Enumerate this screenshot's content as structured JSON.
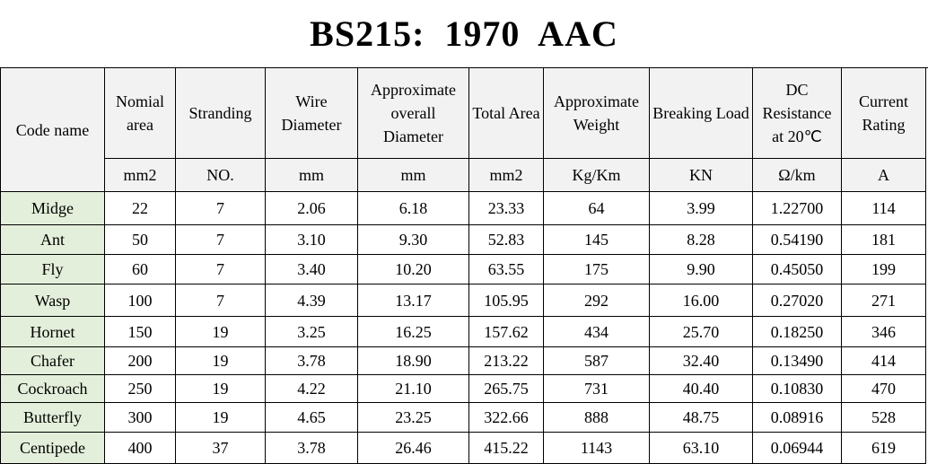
{
  "title": "BS215:  1970  AAC",
  "headers": [
    "Code name",
    "Nomial area",
    "Stranding",
    "Wire Diameter",
    "Approximate overall Diameter",
    "Total Area",
    "Approximate Weight",
    "Breaking Load",
    "DC Resistance at 20℃",
    "Current Rating"
  ],
  "units": [
    "mm2",
    "NO.",
    "mm",
    "mm",
    "mm2",
    "Kg/Km",
    "KN",
    "Ω/km",
    "A"
  ],
  "rows": [
    [
      "Midge",
      "22",
      "7",
      "2.06",
      "6.18",
      "23.33",
      "64",
      "3.99",
      "1.22700",
      "114"
    ],
    [
      "Ant",
      "50",
      "7",
      "3.10",
      "9.30",
      "52.83",
      "145",
      "8.28",
      "0.54190",
      "181"
    ],
    [
      "Fly",
      "60",
      "7",
      "3.40",
      "10.20",
      "63.55",
      "175",
      "9.90",
      "0.45050",
      "199"
    ],
    [
      "Wasp",
      "100",
      "7",
      "4.39",
      "13.17",
      "105.95",
      "292",
      "16.00",
      "0.27020",
      "271"
    ],
    [
      "Hornet",
      "150",
      "19",
      "3.25",
      "16.25",
      "157.62",
      "434",
      "25.70",
      "0.18250",
      "346"
    ],
    [
      "Chafer",
      "200",
      "19",
      "3.78",
      "18.90",
      "213.22",
      "587",
      "32.40",
      "0.13490",
      "414"
    ],
    [
      "Cockroach",
      "250",
      "19",
      "4.22",
      "21.10",
      "265.75",
      "731",
      "40.40",
      "0.10830",
      "470"
    ],
    [
      "Butterfly",
      "300",
      "19",
      "4.65",
      "23.25",
      "322.66",
      "888",
      "48.75",
      "0.08916",
      "528"
    ],
    [
      "Centipede",
      "400",
      "37",
      "3.78",
      "26.46",
      "415.22",
      "1143",
      "63.10",
      "0.06944",
      "619"
    ]
  ]
}
